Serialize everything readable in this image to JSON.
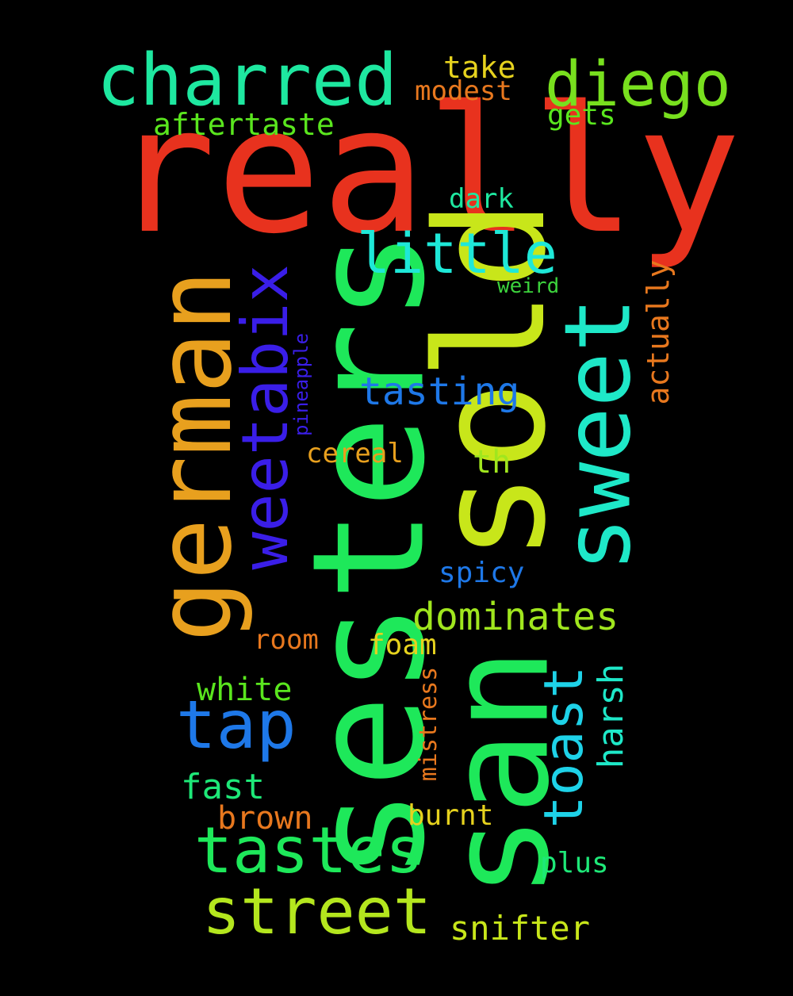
{
  "words": [
    {
      "text": "really",
      "color": "#e8321e"
    },
    {
      "text": "sesters",
      "color": "#1ee85a"
    },
    {
      "text": "sold",
      "color": "#c8e61a"
    },
    {
      "text": "san",
      "color": "#1ee85a"
    },
    {
      "text": "german",
      "color": "#e8a01e"
    },
    {
      "text": "sweet",
      "color": "#1ee8c8"
    },
    {
      "text": "charred",
      "color": "#1ee8a0"
    },
    {
      "text": "weetabix",
      "color": "#3a1ee8"
    },
    {
      "text": "diego",
      "color": "#78e01e"
    },
    {
      "text": "little",
      "color": "#1ee8d8"
    },
    {
      "text": "tastes",
      "color": "#1ee85a"
    },
    {
      "text": "street",
      "color": "#b4e61e"
    },
    {
      "text": "tap",
      "color": "#1e78e8"
    },
    {
      "text": "toast",
      "color": "#1ed2e8"
    },
    {
      "text": "dominates",
      "color": "#a0e61e"
    },
    {
      "text": "tasting",
      "color": "#1e78e8"
    },
    {
      "text": "aftertaste",
      "color": "#5ae61e"
    },
    {
      "text": "harsh",
      "color": "#1ee8c8"
    },
    {
      "text": "actually",
      "color": "#e8781e"
    },
    {
      "text": "take",
      "color": "#e6d21e"
    },
    {
      "text": "modest",
      "color": "#e8781e"
    },
    {
      "text": "gets",
      "color": "#5ae61e"
    },
    {
      "text": "dark",
      "color": "#1ee8a0"
    },
    {
      "text": "weird",
      "color": "#3cd23c"
    },
    {
      "text": "pineapple",
      "color": "#3a1ee8"
    },
    {
      "text": "cereal",
      "color": "#e8a01e"
    },
    {
      "text": "th",
      "color": "#a0e61e"
    },
    {
      "text": "spicy",
      "color": "#1e78e8"
    },
    {
      "text": "room",
      "color": "#e8781e"
    },
    {
      "text": "foam",
      "color": "#e6d21e"
    },
    {
      "text": "white",
      "color": "#5ae61e"
    },
    {
      "text": "mistress",
      "color": "#e8781e"
    },
    {
      "text": "fast",
      "color": "#1ee878"
    },
    {
      "text": "brown",
      "color": "#e8781e"
    },
    {
      "text": "burnt",
      "color": "#e6d21e"
    },
    {
      "text": "plus",
      "color": "#1ee878"
    },
    {
      "text": "snifter",
      "color": "#c8e61a"
    }
  ]
}
